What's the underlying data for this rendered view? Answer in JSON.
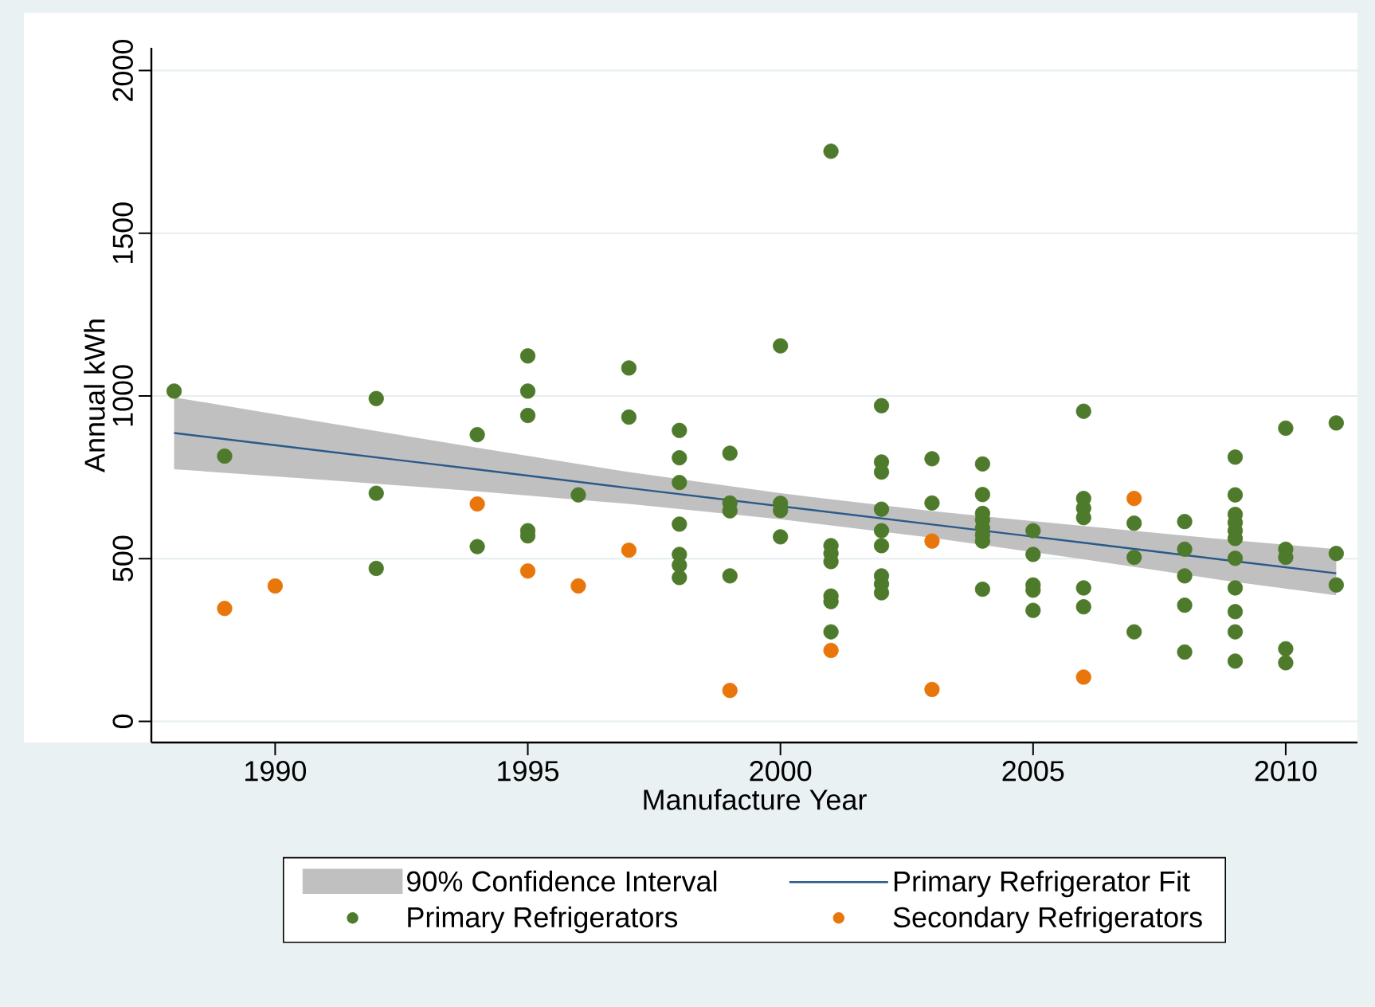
{
  "chart_data": {
    "type": "scatter",
    "xlabel": "Manufacture Year",
    "ylabel": "Annual kWh",
    "xlim": [
      1987.55,
      2011.42
    ],
    "ylim": [
      -65,
      2070
    ],
    "xticks": [
      1990,
      1995,
      2000,
      2005,
      2010
    ],
    "yticks": [
      0,
      500,
      1000,
      1500,
      2000
    ],
    "grid": "y",
    "legend": "bottom",
    "series": [
      {
        "name": "90% Confidence Interval",
        "type": "area",
        "color": "#c0c0c0"
      },
      {
        "name": "Primary Refrigerator Fit",
        "type": "line",
        "color": "#2a5a8a",
        "line_style": "solid",
        "x": [
          1988,
          1991,
          1994,
          1997,
          2000,
          2003,
          2006,
          2009,
          2011
        ],
        "values": [
          886,
          830,
          774,
          717,
          661,
          605,
          549,
          492,
          455
        ],
        "lower": [
          775,
          742,
          707,
          668,
          621,
          564,
          498,
          428,
          387
        ],
        "upper": [
          996,
          918,
          841,
          766,
          701,
          646,
          600,
          556,
          529
        ]
      },
      {
        "name": "Primary Refrigerators",
        "type": "scatter",
        "marker": "circle",
        "color": "#4e7a2b",
        "x": [
          1988,
          1989,
          1992,
          1992,
          1992,
          1994,
          1994,
          1995,
          1995,
          1995,
          1995,
          1995,
          1996,
          1997,
          1997,
          1998,
          1998,
          1998,
          1998,
          1998,
          1998,
          1998,
          1999,
          1999,
          1999,
          1999,
          2000,
          2000,
          2000,
          2000,
          2001,
          2001,
          2001,
          2001,
          2001,
          2001,
          2001,
          2002,
          2002,
          2002,
          2002,
          2002,
          2002,
          2002,
          2002,
          2002,
          2003,
          2003,
          2004,
          2004,
          2004,
          2004,
          2004,
          2004,
          2004,
          2004,
          2005,
          2005,
          2005,
          2005,
          2005,
          2006,
          2006,
          2006,
          2006,
          2006,
          2006,
          2007,
          2007,
          2007,
          2008,
          2008,
          2008,
          2008,
          2008,
          2009,
          2009,
          2009,
          2009,
          2009,
          2009,
          2009,
          2009,
          2009,
          2009,
          2009,
          2010,
          2010,
          2010,
          2010,
          2010,
          2011,
          2011,
          2011
        ],
        "values": [
          1015,
          815,
          992,
          701,
          470,
          881,
          537,
          1123,
          1015,
          940,
          586,
          570,
          696,
          1086,
          935,
          894,
          810,
          734,
          606,
          513,
          480,
          442,
          824,
          671,
          647,
          447,
          1154,
          670,
          648,
          567,
          1752,
          540,
          516,
          491,
          385,
          368,
          275,
          970,
          797,
          766,
          652,
          586,
          540,
          447,
          422,
          395,
          807,
          671,
          791,
          697,
          639,
          619,
          594,
          573,
          554,
          406,
          586,
          513,
          419,
          403,
          341,
          953,
          685,
          655,
          626,
          410,
          352,
          609,
          504,
          275,
          614,
          529,
          447,
          357,
          213,
          812,
          696,
          636,
          611,
          586,
          562,
          501,
          410,
          337,
          275,
          185,
          901,
          529,
          504,
          223,
          180,
          917,
          516,
          419
        ]
      },
      {
        "name": "Secondary Refrigerators",
        "type": "scatter",
        "marker": "circle",
        "color": "#e8760a",
        "x": [
          1989,
          1990,
          1994,
          1995,
          1996,
          1997,
          1999,
          2001,
          2003,
          2003,
          2006,
          2007
        ],
        "values": [
          347,
          416,
          668,
          462,
          416,
          526,
          95,
          218,
          554,
          98,
          136,
          685
        ]
      }
    ]
  }
}
